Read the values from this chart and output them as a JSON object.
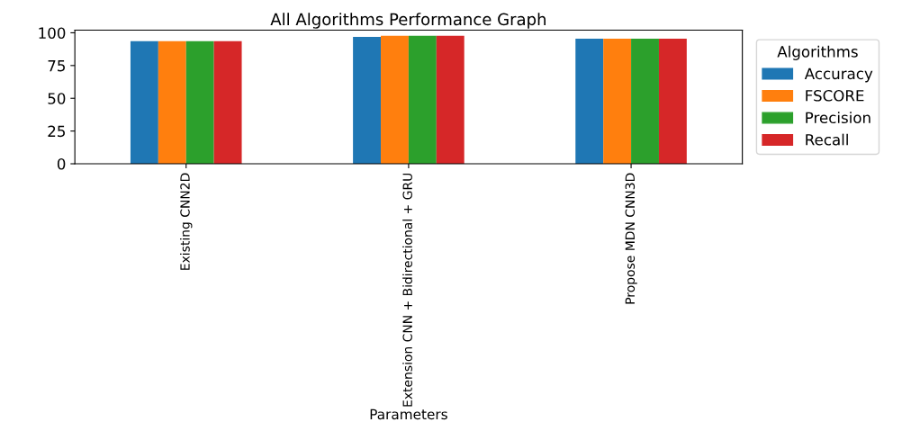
{
  "chart_data": {
    "type": "bar",
    "title": "All Algorithms Performance Graph",
    "xlabel": "Parameters",
    "categories": [
      "Existing CNN2D",
      "Extension CNN + Bidirectional + GRU",
      "Propose MDN CNN3D"
    ],
    "series": [
      {
        "name": "Accuracy",
        "color": "#1f77b4",
        "values": [
          93.6,
          96.9,
          95.5
        ]
      },
      {
        "name": "FSCORE",
        "color": "#ff7f0e",
        "values": [
          93.6,
          97.7,
          95.5
        ]
      },
      {
        "name": "Precision",
        "color": "#2ca02c",
        "values": [
          93.6,
          97.7,
          95.5
        ]
      },
      {
        "name": "Recall",
        "color": "#d62728",
        "values": [
          93.6,
          97.7,
          95.5
        ]
      }
    ],
    "legend_title": "Algorithms",
    "legend": "right",
    "ylim": [
      0,
      102
    ],
    "yticks": [
      0,
      25,
      50,
      75,
      100
    ],
    "grid": false
  }
}
